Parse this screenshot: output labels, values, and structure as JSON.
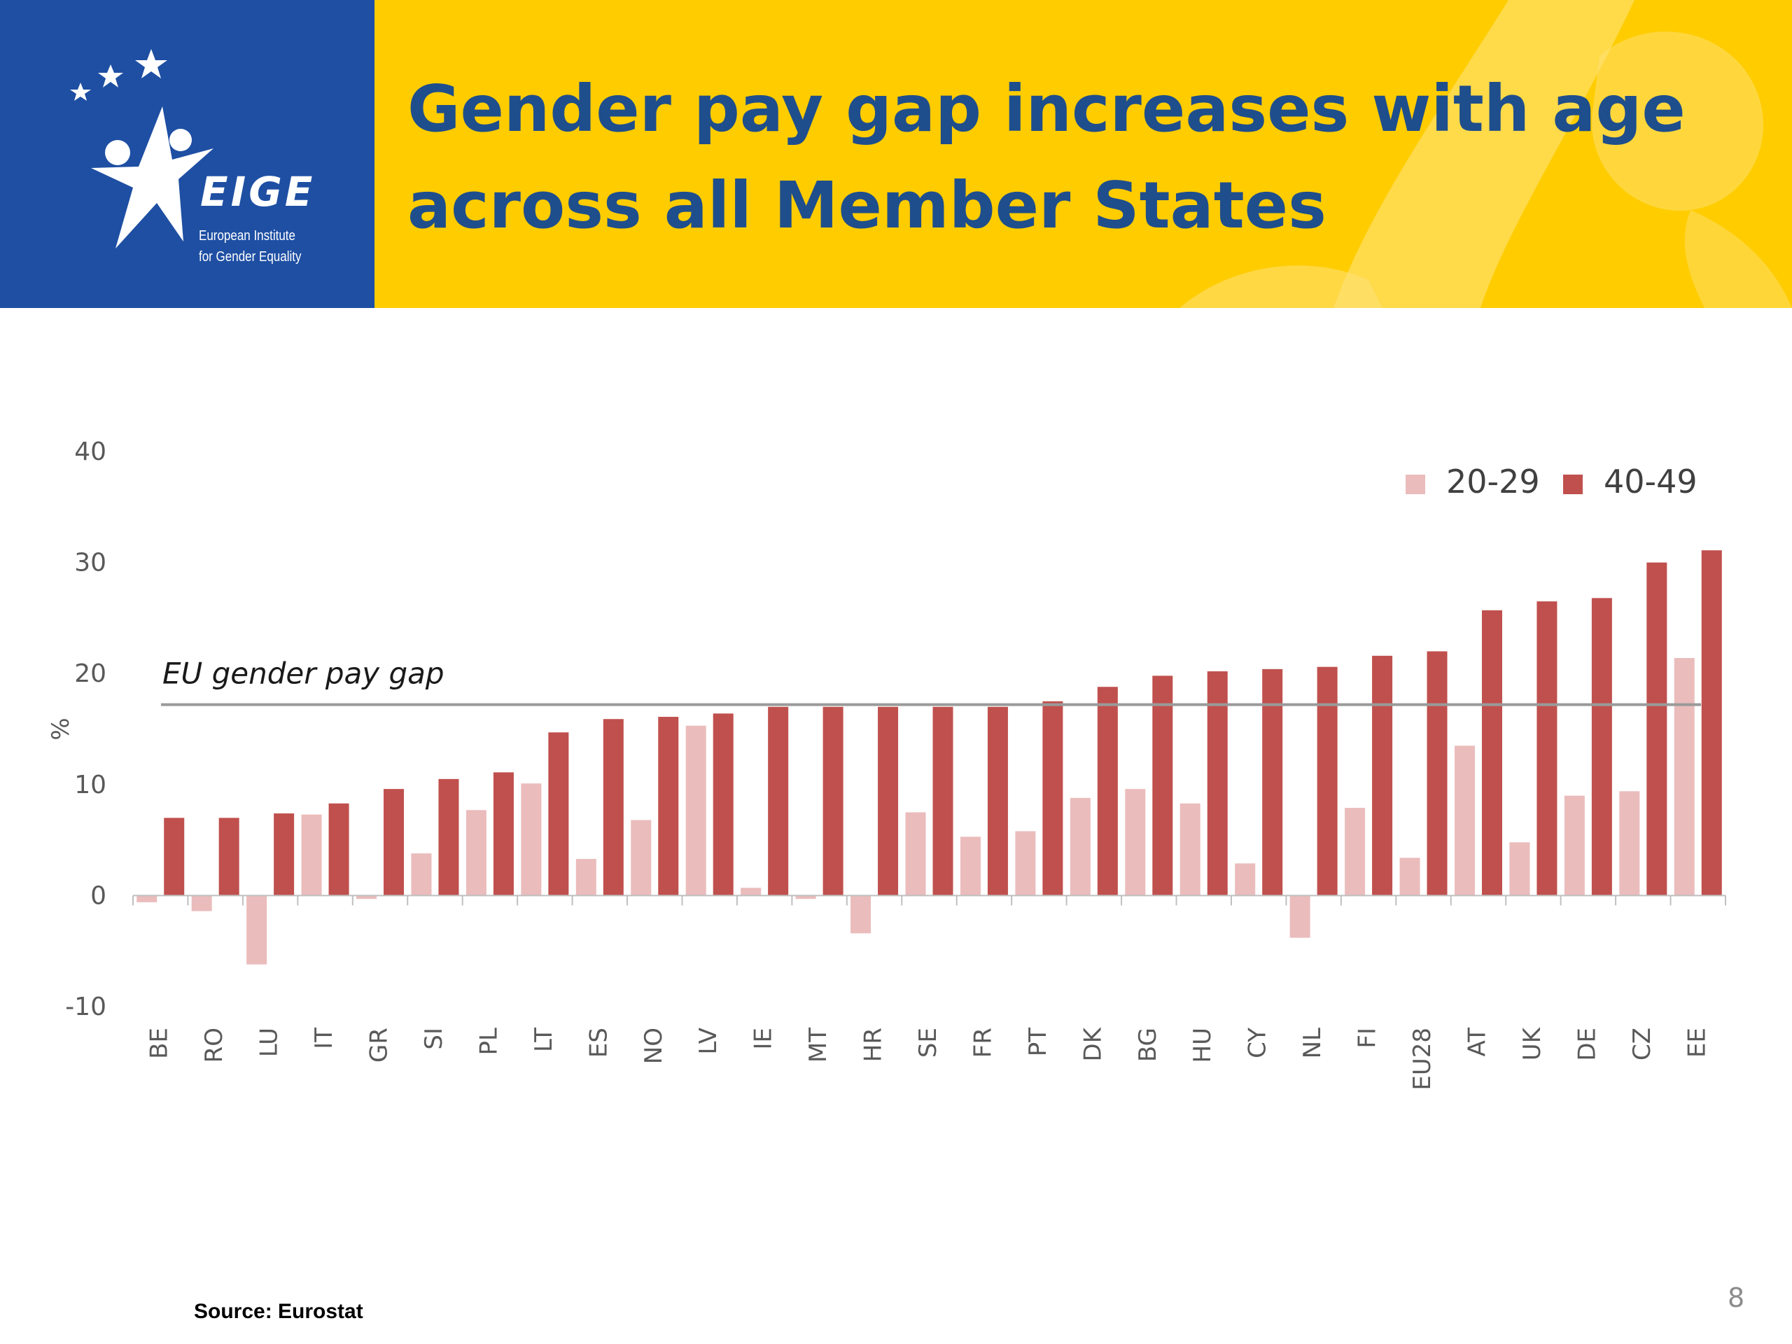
{
  "header": {
    "title_line_1": "Gender pay gap increases with age",
    "title_line_2": "across all Member States",
    "background_color": "#ffcc00",
    "title_color": "#1f4e8c"
  },
  "logo": {
    "name": "EIGE",
    "subtitle_line_1": "European Institute",
    "subtitle_line_2": "for Gender Equality",
    "panel_color": "#1e4fa3"
  },
  "chart_data": {
    "type": "bar",
    "ylabel": "%",
    "ylim": [
      -10,
      40
    ],
    "yticks": [
      -10,
      0,
      10,
      20,
      30,
      40
    ],
    "grid": false,
    "legend_position": "top-right",
    "categories": [
      "BE",
      "RO",
      "LU",
      "IT",
      "GR",
      "SI",
      "PL",
      "LT",
      "ES",
      "NO",
      "LV",
      "IE",
      "MT",
      "HR",
      "SE",
      "FR",
      "PT",
      "DK",
      "BG",
      "HU",
      "CY",
      "NL",
      "FI",
      "EU28",
      "AT",
      "UK",
      "DE",
      "CZ",
      "EE"
    ],
    "series": [
      {
        "name": "20-29",
        "color": "#ebbcbc",
        "values": [
          -0.6,
          -1.4,
          -6.2,
          7.3,
          -0.3,
          3.8,
          7.7,
          10.1,
          3.3,
          6.8,
          15.3,
          0.7,
          -0.3,
          -3.4,
          7.5,
          5.3,
          5.8,
          8.8,
          9.6,
          8.3,
          2.9,
          -3.8,
          7.9,
          3.4,
          13.5,
          4.8,
          9.0,
          9.4,
          21.4
        ]
      },
      {
        "name": "40-49",
        "color": "#c0504d",
        "values": [
          7.0,
          7.0,
          7.4,
          8.3,
          9.6,
          10.5,
          11.1,
          14.7,
          15.9,
          16.1,
          16.4,
          17.0,
          17.0,
          17.0,
          17.0,
          17.0,
          17.5,
          18.8,
          19.8,
          20.2,
          20.4,
          20.6,
          21.6,
          22.0,
          25.7,
          26.5,
          26.8,
          30.0,
          31.1
        ]
      }
    ],
    "reference_line": {
      "label": "EU gender pay gap",
      "value": 17.2,
      "color": "#9a9a9a"
    }
  },
  "footer": {
    "source": "Source: Eurostat",
    "page_number": "8"
  }
}
